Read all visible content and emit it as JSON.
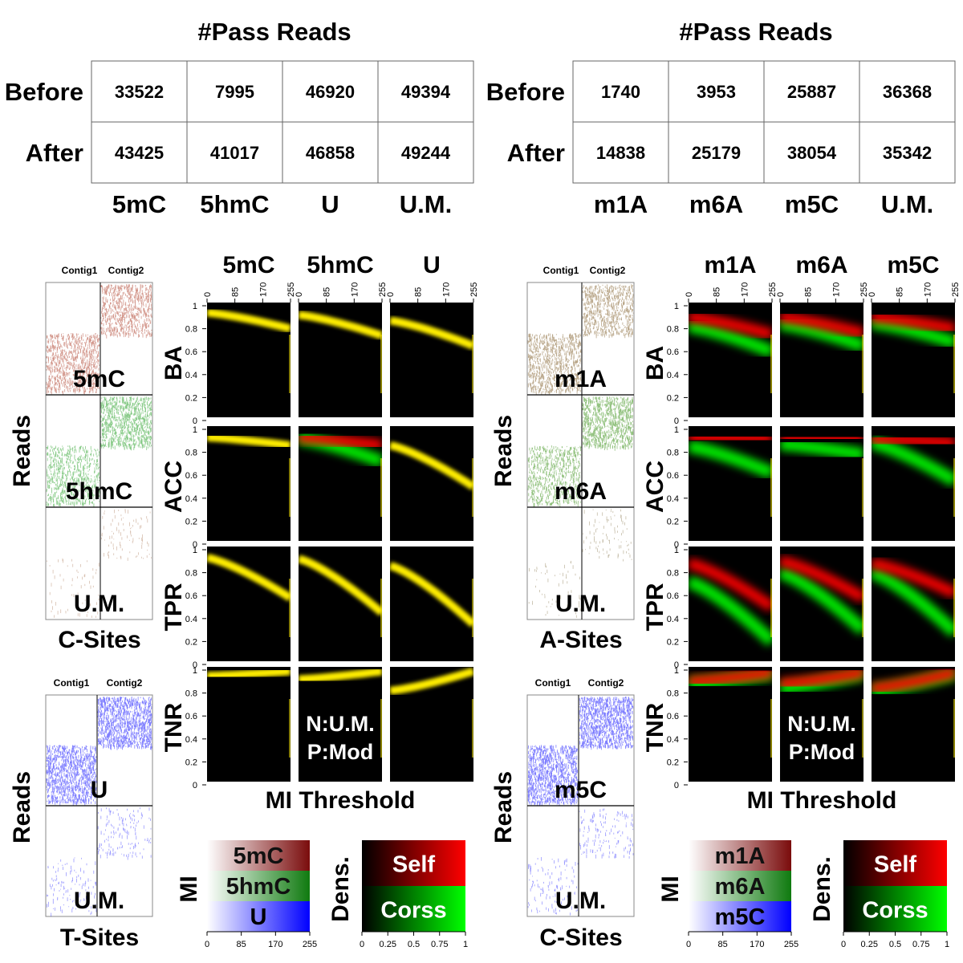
{
  "colors": {
    "red": "#ff0000",
    "green": "#00c800",
    "blue": "#0000ff",
    "yellow": "#ffee00",
    "brown": "#8b1a1a"
  },
  "chart_data": [
    {
      "type": "table",
      "title": "#Pass Reads",
      "rows": [
        "Before",
        "After"
      ],
      "columns": [
        "5mC",
        "5hmC",
        "U",
        "U.M."
      ],
      "values": [
        [
          33522,
          7995,
          46920,
          49394
        ],
        [
          43425,
          41017,
          46858,
          49244
        ]
      ]
    },
    {
      "type": "table",
      "title": "#Pass Reads",
      "rows": [
        "Before",
        "After"
      ],
      "columns": [
        "m1A",
        "m6A",
        "m5C",
        "U.M."
      ],
      "values": [
        [
          1740,
          3953,
          25887,
          36368
        ],
        [
          14838,
          25179,
          38054,
          35342
        ]
      ]
    },
    {
      "type": "heatmap",
      "panel": "left",
      "columns": [
        "5mC",
        "5hmC",
        "U"
      ],
      "rows": [
        "BA",
        "ACC",
        "TPR",
        "TNR"
      ],
      "xlabel": "MI Threshold",
      "x_ticks": [
        0,
        85,
        170,
        255
      ],
      "y_ticks": [
        0,
        0.2,
        0.4,
        0.6,
        0.8,
        1
      ],
      "annotation": [
        "N:U.M.",
        "P:Mod"
      ],
      "series": [
        {
          "metric": "BA",
          "column": "5mC",
          "x": [
            0,
            255
          ],
          "self": [
            0.94,
            0.8
          ],
          "cross": [
            0.94,
            0.8
          ]
        },
        {
          "metric": "BA",
          "column": "5hmC",
          "x": [
            0,
            255
          ],
          "self": [
            0.92,
            0.74
          ],
          "cross": [
            0.92,
            0.74
          ]
        },
        {
          "metric": "BA",
          "column": "U",
          "x": [
            0,
            255
          ],
          "self": [
            0.87,
            0.65
          ],
          "cross": [
            0.87,
            0.65
          ]
        },
        {
          "metric": "ACC",
          "column": "5mC",
          "x": [
            0,
            255
          ],
          "self": [
            0.93,
            0.86
          ],
          "cross": [
            0.93,
            0.86
          ]
        },
        {
          "metric": "ACC",
          "column": "5hmC",
          "x": [
            0,
            255
          ],
          "self": [
            0.93,
            0.86
          ],
          "cross": [
            0.92,
            0.72
          ]
        },
        {
          "metric": "ACC",
          "column": "U",
          "x": [
            0,
            255
          ],
          "self": [
            0.86,
            0.5
          ],
          "cross": [
            0.86,
            0.5
          ]
        },
        {
          "metric": "TPR",
          "column": "5mC",
          "x": [
            0,
            255
          ],
          "self": [
            0.93,
            0.58
          ],
          "cross": [
            0.93,
            0.58
          ]
        },
        {
          "metric": "TPR",
          "column": "5hmC",
          "x": [
            0,
            255
          ],
          "self": [
            0.92,
            0.45
          ],
          "cross": [
            0.92,
            0.45
          ]
        },
        {
          "metric": "TPR",
          "column": "U",
          "x": [
            0,
            255
          ],
          "self": [
            0.86,
            0.35
          ],
          "cross": [
            0.86,
            0.35
          ]
        },
        {
          "metric": "TNR",
          "column": "5mC",
          "x": [
            0,
            255
          ],
          "self": [
            0.95,
            0.99
          ],
          "cross": [
            0.95,
            0.99
          ]
        },
        {
          "metric": "TNR",
          "column": "5hmC",
          "x": [
            0,
            255
          ],
          "self": [
            0.92,
            0.99
          ],
          "cross": [
            0.92,
            0.99
          ]
        },
        {
          "metric": "TNR",
          "column": "U",
          "x": [
            0,
            255
          ],
          "self": [
            0.82,
            0.99
          ],
          "cross": [
            0.82,
            0.99
          ]
        }
      ]
    },
    {
      "type": "heatmap",
      "panel": "right",
      "columns": [
        "m1A",
        "m6A",
        "m5C"
      ],
      "rows": [
        "BA",
        "ACC",
        "TPR",
        "TNR"
      ],
      "xlabel": "MI Threshold",
      "x_ticks": [
        0,
        85,
        170,
        255
      ],
      "y_ticks": [
        0,
        0.2,
        0.4,
        0.6,
        0.8,
        1
      ],
      "annotation": [
        "N:U.M.",
        "P:Mod"
      ],
      "series": [
        {
          "metric": "BA",
          "column": "m1A",
          "x": [
            0,
            255
          ],
          "self": [
            0.9,
            0.75
          ],
          "cross": [
            0.82,
            0.6
          ]
        },
        {
          "metric": "BA",
          "column": "m6A",
          "x": [
            0,
            255
          ],
          "self": [
            0.9,
            0.76
          ],
          "cross": [
            0.84,
            0.65
          ]
        },
        {
          "metric": "BA",
          "column": "m5C",
          "x": [
            0,
            255
          ],
          "self": [
            0.9,
            0.8
          ],
          "cross": [
            0.85,
            0.68
          ]
        },
        {
          "metric": "ACC",
          "column": "m1A",
          "x": [
            0,
            255
          ],
          "self": [
            0.93,
            0.91
          ],
          "cross": [
            0.85,
            0.62
          ]
        },
        {
          "metric": "ACC",
          "column": "m6A",
          "x": [
            0,
            255
          ],
          "self": [
            0.93,
            0.92
          ],
          "cross": [
            0.87,
            0.78
          ]
        },
        {
          "metric": "ACC",
          "column": "m5C",
          "x": [
            0,
            255
          ],
          "self": [
            0.92,
            0.88
          ],
          "cross": [
            0.88,
            0.55
          ]
        },
        {
          "metric": "TPR",
          "column": "m1A",
          "x": [
            0,
            255
          ],
          "self": [
            0.88,
            0.5
          ],
          "cross": [
            0.72,
            0.2
          ]
        },
        {
          "metric": "TPR",
          "column": "m6A",
          "x": [
            0,
            255
          ],
          "self": [
            0.9,
            0.58
          ],
          "cross": [
            0.8,
            0.3
          ]
        },
        {
          "metric": "TPR",
          "column": "m5C",
          "x": [
            0,
            255
          ],
          "self": [
            0.88,
            0.62
          ],
          "cross": [
            0.8,
            0.28
          ]
        },
        {
          "metric": "TNR",
          "column": "m1A",
          "x": [
            0,
            255
          ],
          "self": [
            0.9,
            0.98
          ],
          "cross": [
            0.88,
            0.97
          ]
        },
        {
          "metric": "TNR",
          "column": "m6A",
          "x": [
            0,
            255
          ],
          "self": [
            0.88,
            0.98
          ],
          "cross": [
            0.84,
            0.97
          ]
        },
        {
          "metric": "TNR",
          "column": "m5C",
          "x": [
            0,
            255
          ],
          "self": [
            0.84,
            0.98
          ],
          "cross": [
            0.82,
            0.97
          ]
        }
      ]
    }
  ],
  "left": {
    "reads_label": "Reads",
    "contig1": "Contig1",
    "contig2": "Contig2",
    "csites": {
      "sublabels": [
        "5mC",
        "5hmC",
        "U.M."
      ],
      "xlabel": "C-Sites"
    },
    "tsites": {
      "sublabels": [
        "U",
        "U.M."
      ],
      "xlabel": "T-Sites"
    },
    "mi_legend": {
      "label": "MI",
      "entries": [
        "5mC",
        "5hmC",
        "U"
      ],
      "ticks": [
        0,
        85,
        170,
        255
      ]
    },
    "dens_legend": {
      "label": "Dens.",
      "entries": [
        "Self",
        "Corss"
      ],
      "ticks": [
        0,
        0.25,
        0.5,
        0.75,
        1
      ]
    }
  },
  "right": {
    "reads_label": "Reads",
    "contig1": "Contig1",
    "contig2": "Contig2",
    "asites": {
      "sublabels": [
        "m1A",
        "m6A",
        "U.M."
      ],
      "xlabel": "A-Sites"
    },
    "csites": {
      "sublabels": [
        "m5C",
        "U.M."
      ],
      "xlabel": "C-Sites"
    },
    "mi_legend": {
      "label": "MI",
      "entries": [
        "m1A",
        "m6A",
        "m5C"
      ],
      "ticks": [
        0,
        85,
        170,
        255
      ]
    },
    "dens_legend": {
      "label": "Dens.",
      "entries": [
        "Self",
        "Corss"
      ],
      "ticks": [
        0,
        0.25,
        0.5,
        0.75,
        1
      ]
    }
  }
}
